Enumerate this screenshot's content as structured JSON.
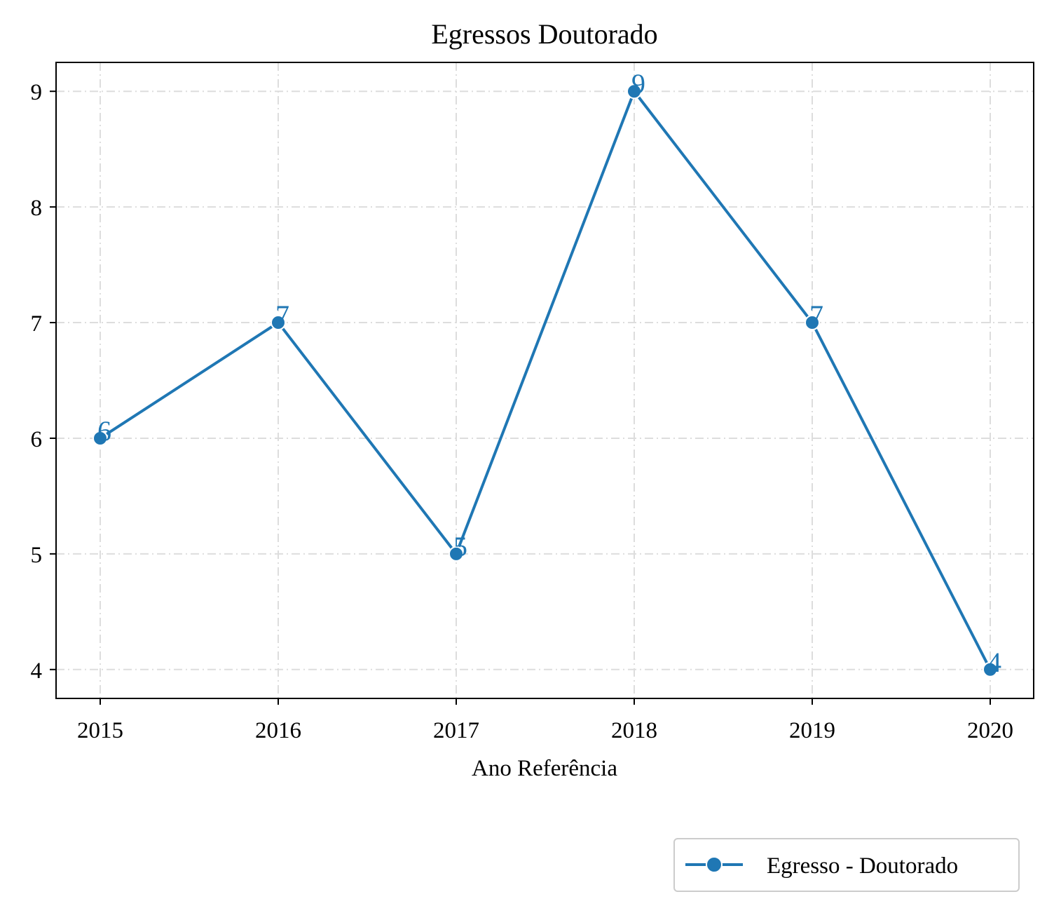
{
  "chart_data": {
    "type": "line",
    "title": "Egressos Doutorado",
    "xlabel": "Ano Referência",
    "ylabel": "",
    "x": [
      "2015",
      "2016",
      "2017",
      "2018",
      "2019",
      "2020"
    ],
    "series": [
      {
        "name": "Egresso - Doutorado",
        "values": [
          6,
          7,
          5,
          9,
          7,
          4
        ],
        "color": "#1f77b4",
        "marker": "circle"
      }
    ],
    "yticks": [
      "4",
      "5",
      "6",
      "7",
      "8",
      "9"
    ],
    "ylim": [
      3.75,
      9.25
    ],
    "grid": true,
    "legend_position": "bottom-right"
  }
}
